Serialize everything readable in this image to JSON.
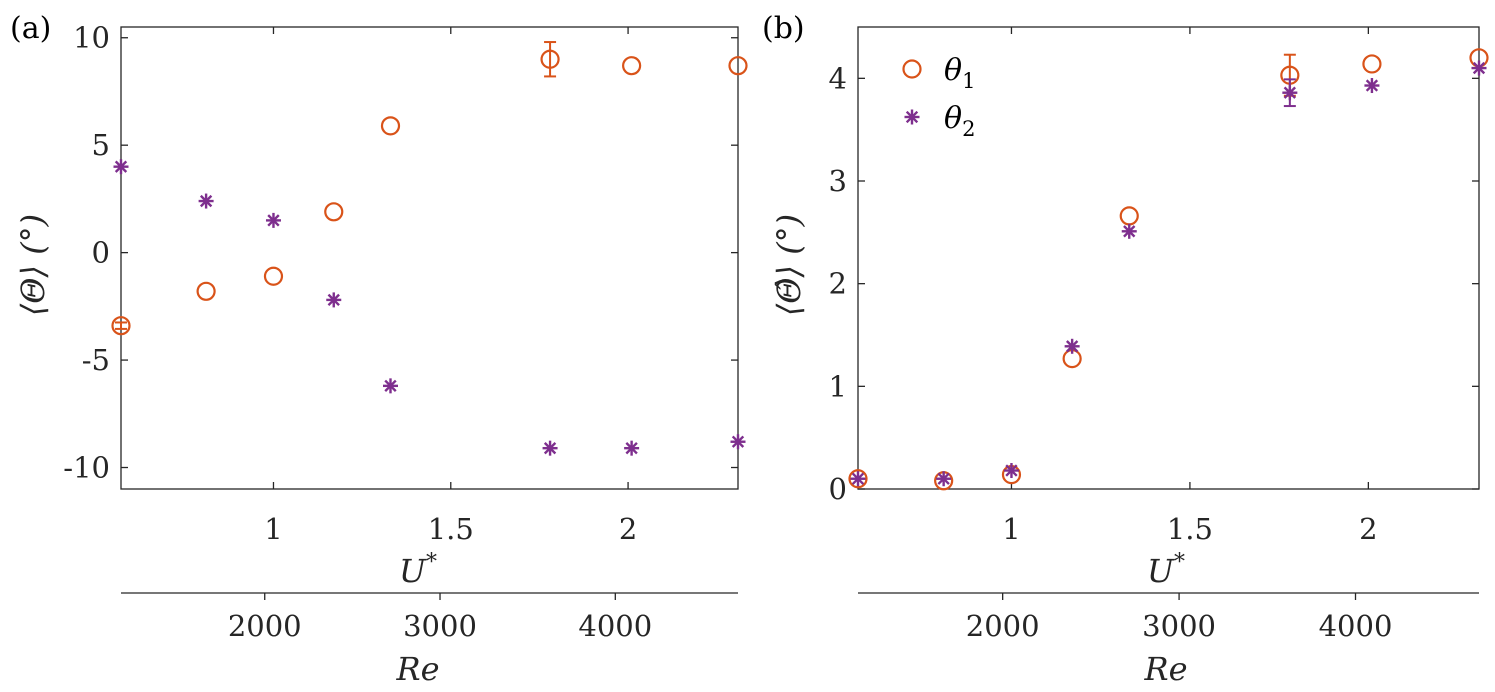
{
  "colors": {
    "theta1": "#D95319",
    "theta2": "#7E2F8E",
    "axis": "#262626"
  },
  "chart_data": [
    {
      "type": "scatter",
      "panel_label": "(a)",
      "xlabel": "U*",
      "ylabel": "⟨Θ⟩ (°)",
      "xlim": [
        0.57,
        2.31
      ],
      "xticks": [
        1,
        1.5,
        2
      ],
      "xtick_labels": [
        "1",
        "1.5",
        "2"
      ],
      "ylim": [
        -11,
        10.5
      ],
      "yticks": [
        10,
        5,
        0,
        -5,
        -10
      ],
      "ytick_labels": [
        "10",
        "5",
        "0",
        "-5",
        "-10"
      ],
      "secondary_xlabel": "Re",
      "secondary_xticks": [
        2000,
        3000,
        4000
      ],
      "secondary_xtick_labels": [
        "2000",
        "3000",
        "4000"
      ],
      "secondary_xlim": [
        1180,
        4700
      ],
      "series": [
        {
          "name": "θ1",
          "marker": "circle",
          "x": [
            0.57,
            0.81,
            1.0,
            1.17,
            1.33,
            1.78,
            2.01,
            2.31
          ],
          "y": [
            -3.4,
            -1.8,
            -1.1,
            1.9,
            5.9,
            9.0,
            8.7,
            8.7
          ],
          "err": [
            0.15,
            0,
            0,
            0,
            0,
            0.8,
            0,
            0
          ]
        },
        {
          "name": "θ2",
          "marker": "asterisk",
          "x": [
            0.57,
            0.81,
            1.0,
            1.17,
            1.33,
            1.78,
            2.01,
            2.31
          ],
          "y": [
            4.0,
            2.4,
            1.5,
            -2.2,
            -6.2,
            -9.1,
            -9.1,
            -8.8
          ],
          "err": [
            0,
            0,
            0,
            0,
            0,
            0,
            0,
            0
          ]
        }
      ]
    },
    {
      "type": "scatter",
      "panel_label": "(b)",
      "xlabel": "U*",
      "ylabel": "⟨Θ̂⟩ (°)",
      "xlim": [
        0.57,
        2.31
      ],
      "xticks": [
        1,
        1.5,
        2
      ],
      "xtick_labels": [
        "1",
        "1.5",
        "2"
      ],
      "ylim": [
        0,
        4.5
      ],
      "yticks": [
        4,
        3,
        2,
        1,
        0
      ],
      "ytick_labels": [
        "4",
        "3",
        "2",
        "1",
        "0"
      ],
      "secondary_xlabel": "Re",
      "secondary_xticks": [
        2000,
        3000,
        4000
      ],
      "secondary_xtick_labels": [
        "2000",
        "3000",
        "4000"
      ],
      "secondary_xlim": [
        1180,
        4700
      ],
      "legend": {
        "position": "top-left",
        "entries": [
          "θ",
          "θ"
        ],
        "subscripts": [
          "1",
          "2"
        ]
      },
      "series": [
        {
          "name": "θ1",
          "marker": "circle",
          "x": [
            0.57,
            0.81,
            1.0,
            1.17,
            1.33,
            1.78,
            2.01,
            2.31
          ],
          "y": [
            0.1,
            0.08,
            0.14,
            1.27,
            2.66,
            4.03,
            4.14,
            4.2
          ],
          "err": [
            0,
            0,
            0,
            0,
            0,
            0.2,
            0,
            0
          ]
        },
        {
          "name": "θ2",
          "marker": "asterisk",
          "x": [
            0.57,
            0.81,
            1.0,
            1.17,
            1.33,
            1.78,
            2.01,
            2.31
          ],
          "y": [
            0.1,
            0.1,
            0.18,
            1.39,
            2.51,
            3.86,
            3.93,
            4.1
          ],
          "err": [
            0,
            0,
            0,
            0,
            0,
            0.13,
            0,
            0
          ]
        }
      ]
    }
  ]
}
